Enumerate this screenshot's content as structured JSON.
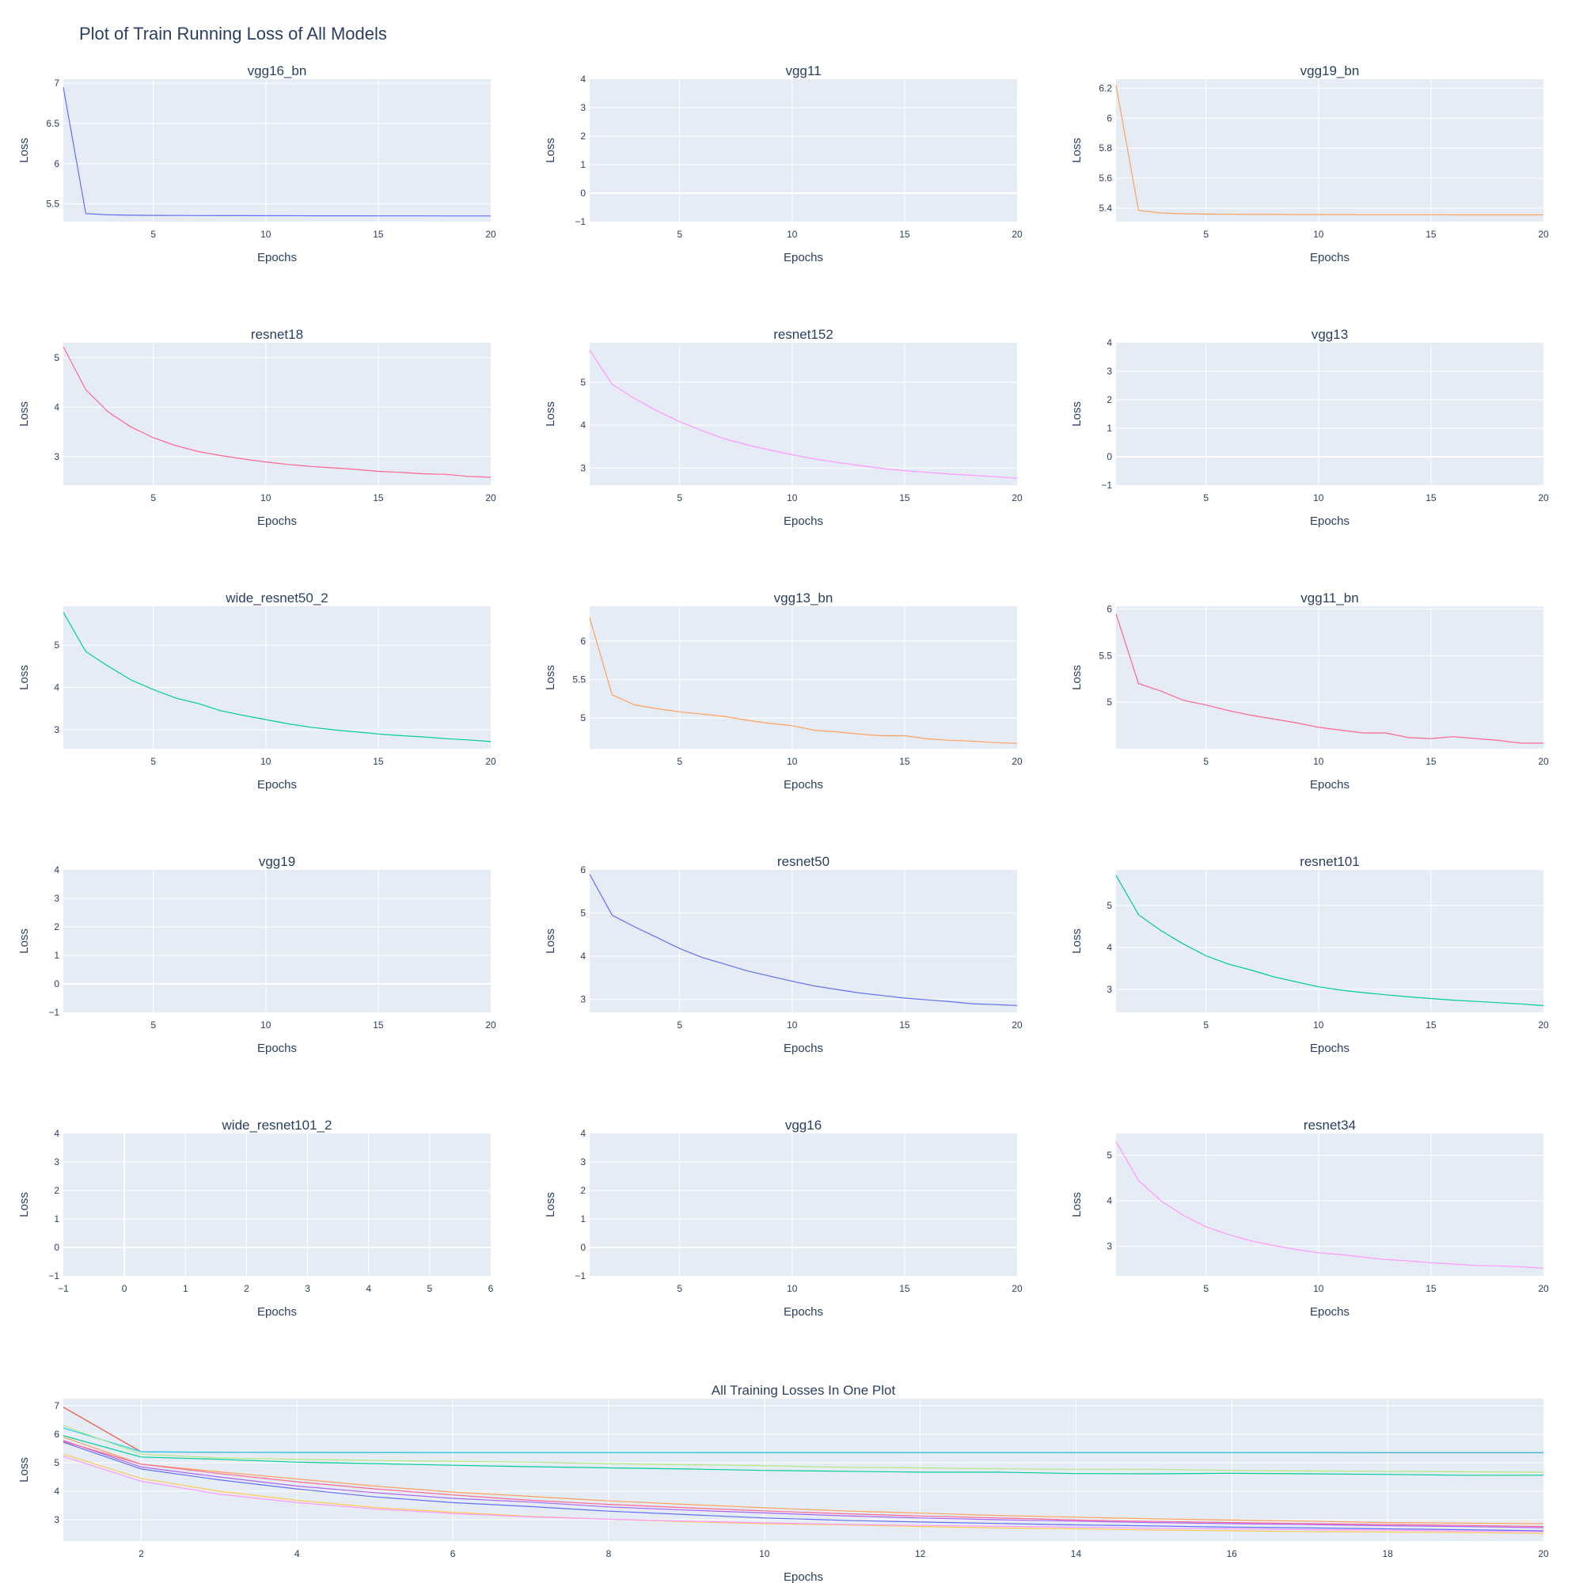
{
  "figure": {
    "title": "Plot of Train Running Loss of All Models",
    "xlabel": "Epochs",
    "ylabel": "Loss"
  },
  "colors": {
    "plot_bg": "#E5ECF6",
    "grid": "#ffffff",
    "text": "#2a3f5f",
    "blue": "#636EFA",
    "orange": "#FFA15A",
    "pink": "#FF6692",
    "magenta": "#FF97FF",
    "teal": "#19D3F3",
    "green": "#00CC96"
  },
  "chart_data": [
    {
      "type": "line",
      "title": "vgg16_bn",
      "xlabel": "Epochs",
      "ylabel": "Loss",
      "x": [
        1,
        2,
        3,
        4,
        5,
        6,
        7,
        8,
        9,
        10,
        11,
        12,
        13,
        14,
        15,
        16,
        17,
        18,
        19,
        20
      ],
      "xlim": [
        1,
        20
      ],
      "xticks": [
        "5",
        "10",
        "15",
        "20"
      ],
      "ylim": [
        5.28,
        7.05
      ],
      "yticks": [
        "5.5",
        "6",
        "6.5",
        "7"
      ],
      "series": [
        {
          "color": "#636EFA",
          "values": [
            6.95,
            5.38,
            5.365,
            5.36,
            5.358,
            5.357,
            5.356,
            5.355,
            5.355,
            5.354,
            5.354,
            5.353,
            5.353,
            5.353,
            5.352,
            5.352,
            5.352,
            5.351,
            5.351,
            5.351
          ]
        }
      ]
    },
    {
      "type": "line",
      "title": "vgg11",
      "xlabel": "Epochs",
      "ylabel": "Loss",
      "xlim": [
        1,
        20
      ],
      "xticks": [
        "5",
        "10",
        "15",
        "20"
      ],
      "ylim": [
        -1,
        4
      ],
      "yticks": [
        "−1",
        "0",
        "1",
        "2",
        "3",
        "4"
      ],
      "zeroline": true,
      "series": []
    },
    {
      "type": "line",
      "title": "vgg19_bn",
      "xlabel": "Epochs",
      "ylabel": "Loss",
      "x": [
        1,
        2,
        3,
        4,
        5,
        6,
        7,
        8,
        9,
        10,
        11,
        12,
        13,
        14,
        15,
        16,
        17,
        18,
        19,
        20
      ],
      "xlim": [
        1,
        20
      ],
      "xticks": [
        "5",
        "10",
        "15",
        "20"
      ],
      "ylim": [
        5.31,
        6.26
      ],
      "yticks": [
        "5.4",
        "5.6",
        "5.8",
        "6",
        "6.2"
      ],
      "series": [
        {
          "color": "#FFA15A",
          "values": [
            6.22,
            5.385,
            5.368,
            5.362,
            5.36,
            5.359,
            5.358,
            5.358,
            5.357,
            5.357,
            5.357,
            5.356,
            5.356,
            5.356,
            5.356,
            5.355,
            5.355,
            5.355,
            5.355,
            5.355
          ]
        }
      ]
    },
    {
      "type": "line",
      "title": "resnet18",
      "xlabel": "Epochs",
      "ylabel": "Loss",
      "x": [
        1,
        2,
        3,
        4,
        5,
        6,
        7,
        8,
        9,
        10,
        11,
        12,
        13,
        14,
        15,
        16,
        17,
        18,
        19,
        20
      ],
      "xlim": [
        1,
        20
      ],
      "xticks": [
        "5",
        "10",
        "15",
        "20"
      ],
      "ylim": [
        2.42,
        5.3
      ],
      "yticks": [
        "3",
        "4",
        "5"
      ],
      "series": [
        {
          "color": "#FF6692",
          "values": [
            5.22,
            4.35,
            3.9,
            3.6,
            3.38,
            3.22,
            3.1,
            3.02,
            2.95,
            2.89,
            2.84,
            2.8,
            2.77,
            2.74,
            2.7,
            2.68,
            2.65,
            2.64,
            2.6,
            2.58
          ]
        }
      ]
    },
    {
      "type": "line",
      "title": "resnet152",
      "xlabel": "Epochs",
      "ylabel": "Loss",
      "x": [
        1,
        2,
        3,
        4,
        5,
        6,
        7,
        8,
        9,
        10,
        11,
        12,
        13,
        14,
        15,
        16,
        17,
        18,
        19,
        20
      ],
      "xlim": [
        1,
        20
      ],
      "xticks": [
        "5",
        "10",
        "15",
        "20"
      ],
      "ylim": [
        2.6,
        5.92
      ],
      "yticks": [
        "3",
        "4",
        "5"
      ],
      "series": [
        {
          "color": "#FF97FF",
          "values": [
            5.75,
            4.95,
            4.62,
            4.33,
            4.08,
            3.87,
            3.68,
            3.54,
            3.42,
            3.31,
            3.21,
            3.13,
            3.06,
            2.99,
            2.94,
            2.9,
            2.86,
            2.83,
            2.8,
            2.76
          ]
        }
      ]
    },
    {
      "type": "line",
      "title": "vgg13",
      "xlabel": "Epochs",
      "ylabel": "Loss",
      "xlim": [
        1,
        20
      ],
      "xticks": [
        "5",
        "10",
        "15",
        "20"
      ],
      "ylim": [
        -1,
        4
      ],
      "yticks": [
        "−1",
        "0",
        "1",
        "2",
        "3",
        "4"
      ],
      "zeroline": true,
      "series": []
    },
    {
      "type": "line",
      "title": "wide_resnet50_2",
      "xlabel": "Epochs",
      "ylabel": "Loss",
      "x": [
        1,
        2,
        3,
        4,
        5,
        6,
        7,
        8,
        9,
        10,
        11,
        12,
        13,
        14,
        15,
        16,
        17,
        18,
        19,
        20
      ],
      "xlim": [
        1,
        20
      ],
      "xticks": [
        "5",
        "10",
        "15",
        "20"
      ],
      "ylim": [
        2.55,
        5.92
      ],
      "yticks": [
        "3",
        "4",
        "5"
      ],
      "series": [
        {
          "color": "#00CC96",
          "values": [
            5.78,
            4.85,
            4.5,
            4.18,
            3.95,
            3.75,
            3.62,
            3.45,
            3.34,
            3.24,
            3.14,
            3.06,
            3.0,
            2.95,
            2.9,
            2.86,
            2.83,
            2.79,
            2.76,
            2.72
          ]
        }
      ]
    },
    {
      "type": "line",
      "title": "vgg13_bn",
      "xlabel": "Epochs",
      "ylabel": "Loss",
      "x": [
        1,
        2,
        3,
        4,
        5,
        6,
        7,
        8,
        9,
        10,
        11,
        12,
        13,
        14,
        15,
        16,
        17,
        18,
        19,
        20
      ],
      "xlim": [
        1,
        20
      ],
      "xticks": [
        "5",
        "10",
        "15",
        "20"
      ],
      "ylim": [
        4.6,
        6.45
      ],
      "yticks": [
        "5",
        "5.5",
        "6"
      ],
      "series": [
        {
          "color": "#FFA15A",
          "values": [
            6.3,
            5.3,
            5.17,
            5.12,
            5.08,
            5.05,
            5.02,
            4.97,
            4.93,
            4.9,
            4.84,
            4.82,
            4.79,
            4.77,
            4.77,
            4.73,
            4.71,
            4.7,
            4.68,
            4.67
          ]
        }
      ]
    },
    {
      "type": "line",
      "title": "vgg11_bn",
      "xlabel": "Epochs",
      "ylabel": "Loss",
      "x": [
        1,
        2,
        3,
        4,
        5,
        6,
        7,
        8,
        9,
        10,
        11,
        12,
        13,
        14,
        15,
        16,
        17,
        18,
        19,
        20
      ],
      "xlim": [
        1,
        20
      ],
      "xticks": [
        "5",
        "10",
        "15",
        "20"
      ],
      "ylim": [
        4.5,
        6.03
      ],
      "yticks": [
        "5",
        "5.5",
        "6"
      ],
      "series": [
        {
          "color": "#FF6692",
          "values": [
            5.95,
            5.2,
            5.12,
            5.02,
            4.97,
            4.91,
            4.86,
            4.82,
            4.78,
            4.73,
            4.7,
            4.67,
            4.67,
            4.62,
            4.61,
            4.63,
            4.61,
            4.59,
            4.56,
            4.56
          ]
        }
      ]
    },
    {
      "type": "line",
      "title": "vgg19",
      "xlabel": "Epochs",
      "ylabel": "Loss",
      "xlim": [
        1,
        20
      ],
      "xticks": [
        "5",
        "10",
        "15",
        "20"
      ],
      "ylim": [
        -1,
        4
      ],
      "yticks": [
        "−1",
        "0",
        "1",
        "2",
        "3",
        "4"
      ],
      "zeroline": true,
      "series": []
    },
    {
      "type": "line",
      "title": "resnet50",
      "xlabel": "Epochs",
      "ylabel": "Loss",
      "x": [
        1,
        2,
        3,
        4,
        5,
        6,
        7,
        8,
        9,
        10,
        11,
        12,
        13,
        14,
        15,
        16,
        17,
        18,
        19,
        20
      ],
      "xlim": [
        1,
        20
      ],
      "xticks": [
        "5",
        "10",
        "15",
        "20"
      ],
      "ylim": [
        2.7,
        6.0
      ],
      "yticks": [
        "3",
        "4",
        "5",
        "6"
      ],
      "series": [
        {
          "color": "#636EFA",
          "values": [
            5.9,
            4.95,
            4.68,
            4.43,
            4.18,
            3.97,
            3.82,
            3.66,
            3.54,
            3.42,
            3.31,
            3.23,
            3.15,
            3.09,
            3.03,
            2.99,
            2.95,
            2.9,
            2.88,
            2.86
          ]
        }
      ]
    },
    {
      "type": "line",
      "title": "resnet101",
      "xlabel": "Epochs",
      "ylabel": "Loss",
      "x": [
        1,
        2,
        3,
        4,
        5,
        6,
        7,
        8,
        9,
        10,
        11,
        12,
        13,
        14,
        15,
        16,
        17,
        18,
        19,
        20
      ],
      "xlim": [
        1,
        20
      ],
      "xticks": [
        "5",
        "10",
        "15",
        "20"
      ],
      "ylim": [
        2.45,
        5.85
      ],
      "yticks": [
        "3",
        "4",
        "5"
      ],
      "series": [
        {
          "color": "#00CC96",
          "values": [
            5.72,
            4.78,
            4.4,
            4.08,
            3.8,
            3.6,
            3.46,
            3.3,
            3.18,
            3.06,
            2.98,
            2.92,
            2.87,
            2.82,
            2.78,
            2.74,
            2.71,
            2.68,
            2.65,
            2.61
          ]
        }
      ]
    },
    {
      "type": "line",
      "title": "wide_resnet101_2",
      "xlabel": "Epochs",
      "ylabel": "Loss",
      "xlim": [
        -1,
        6
      ],
      "xticks": [
        "−1",
        "0",
        "1",
        "2",
        "3",
        "4",
        "5",
        "6"
      ],
      "ylim": [
        -1,
        4
      ],
      "yticks": [
        "−1",
        "0",
        "1",
        "2",
        "3",
        "4"
      ],
      "zeroline": true,
      "zerolinex": true,
      "series": []
    },
    {
      "type": "line",
      "title": "vgg16",
      "xlabel": "Epochs",
      "ylabel": "Loss",
      "xlim": [
        1,
        20
      ],
      "xticks": [
        "5",
        "10",
        "15",
        "20"
      ],
      "ylim": [
        -1,
        4
      ],
      "yticks": [
        "−1",
        "0",
        "1",
        "2",
        "3",
        "4"
      ],
      "zeroline": true,
      "series": []
    },
    {
      "type": "line",
      "title": "resnet34",
      "xlabel": "Epochs",
      "ylabel": "Loss",
      "x": [
        1,
        2,
        3,
        4,
        5,
        6,
        7,
        8,
        9,
        10,
        11,
        12,
        13,
        14,
        15,
        16,
        17,
        18,
        19,
        20
      ],
      "xlim": [
        1,
        20
      ],
      "xticks": [
        "5",
        "10",
        "15",
        "20"
      ],
      "ylim": [
        2.35,
        5.48
      ],
      "yticks": [
        "3",
        "4",
        "5"
      ],
      "series": [
        {
          "color": "#FF97FF",
          "values": [
            5.3,
            4.45,
            4.0,
            3.68,
            3.43,
            3.26,
            3.12,
            3.02,
            2.93,
            2.86,
            2.82,
            2.76,
            2.71,
            2.68,
            2.64,
            2.61,
            2.58,
            2.57,
            2.55,
            2.52
          ]
        }
      ]
    },
    {
      "type": "line",
      "title": "All Training Losses In One Plot",
      "xlabel": "Epochs",
      "ylabel": "Loss",
      "x": [
        1,
        2,
        3,
        4,
        5,
        6,
        7,
        8,
        9,
        10,
        11,
        12,
        13,
        14,
        15,
        16,
        17,
        18,
        19,
        20
      ],
      "xlim": [
        1,
        20
      ],
      "xticks": [
        "2",
        "4",
        "6",
        "8",
        "10",
        "12",
        "14",
        "16",
        "18",
        "20"
      ],
      "ylim": [
        2.25,
        7.25
      ],
      "yticks": [
        "3",
        "4",
        "5",
        "6",
        "7"
      ],
      "series": [
        {
          "color": "#EF553B",
          "values": [
            6.95,
            5.38,
            5.365,
            5.36,
            5.358,
            5.357,
            5.356,
            5.355,
            5.355,
            5.354,
            5.354,
            5.353,
            5.353,
            5.353,
            5.352,
            5.352,
            5.352,
            5.351,
            5.351,
            5.351
          ]
        },
        {
          "color": "#19D3F3",
          "values": [
            6.22,
            5.385,
            5.368,
            5.362,
            5.36,
            5.359,
            5.358,
            5.358,
            5.357,
            5.357,
            5.357,
            5.356,
            5.356,
            5.356,
            5.356,
            5.355,
            5.355,
            5.355,
            5.355,
            5.355
          ]
        },
        {
          "color": "#B6E880",
          "values": [
            6.3,
            5.3,
            5.17,
            5.12,
            5.08,
            5.05,
            5.02,
            4.97,
            4.93,
            4.9,
            4.84,
            4.82,
            4.79,
            4.77,
            4.77,
            4.73,
            4.71,
            4.7,
            4.68,
            4.67
          ]
        },
        {
          "color": "#00CC96",
          "values": [
            5.95,
            5.2,
            5.12,
            5.02,
            4.97,
            4.91,
            4.86,
            4.82,
            4.78,
            4.73,
            4.7,
            4.67,
            4.67,
            4.62,
            4.61,
            4.63,
            4.61,
            4.59,
            4.56,
            4.56
          ]
        },
        {
          "color": "#FFA15A",
          "values": [
            5.9,
            4.95,
            4.68,
            4.43,
            4.18,
            3.97,
            3.82,
            3.66,
            3.54,
            3.42,
            3.31,
            3.23,
            3.15,
            3.09,
            3.03,
            2.99,
            2.95,
            2.9,
            2.88,
            2.86
          ]
        },
        {
          "color": "#AB63FA",
          "values": [
            5.78,
            4.85,
            4.5,
            4.18,
            3.95,
            3.75,
            3.62,
            3.45,
            3.34,
            3.24,
            3.14,
            3.06,
            3.0,
            2.95,
            2.9,
            2.86,
            2.83,
            2.79,
            2.76,
            2.72
          ]
        },
        {
          "color": "#FF6692",
          "values": [
            5.75,
            4.95,
            4.62,
            4.33,
            4.08,
            3.87,
            3.68,
            3.54,
            3.42,
            3.31,
            3.21,
            3.13,
            3.06,
            2.99,
            2.94,
            2.9,
            2.86,
            2.83,
            2.8,
            2.76
          ]
        },
        {
          "color": "#636EFA",
          "values": [
            5.72,
            4.78,
            4.4,
            4.08,
            3.8,
            3.6,
            3.46,
            3.3,
            3.18,
            3.06,
            2.98,
            2.92,
            2.87,
            2.82,
            2.78,
            2.74,
            2.71,
            2.68,
            2.65,
            2.61
          ]
        },
        {
          "color": "#FECB52",
          "values": [
            5.3,
            4.45,
            4.0,
            3.68,
            3.43,
            3.26,
            3.12,
            3.02,
            2.93,
            2.86,
            2.82,
            2.76,
            2.71,
            2.68,
            2.64,
            2.61,
            2.58,
            2.57,
            2.55,
            2.52
          ]
        },
        {
          "color": "#FF97FF",
          "values": [
            5.22,
            4.35,
            3.9,
            3.6,
            3.38,
            3.22,
            3.1,
            3.02,
            2.95,
            2.89,
            2.84,
            2.8,
            2.77,
            2.74,
            2.7,
            2.68,
            2.65,
            2.64,
            2.6,
            2.58
          ]
        }
      ]
    }
  ]
}
